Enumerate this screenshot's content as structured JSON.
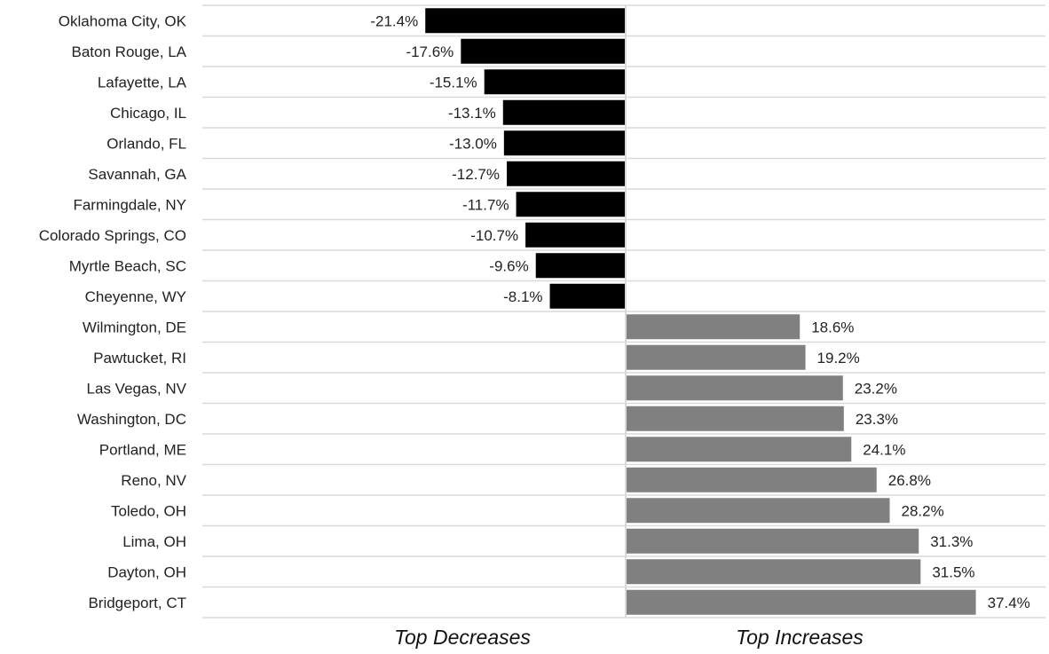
{
  "chart_data": {
    "type": "bar",
    "orientation": "horizontal",
    "categories": [
      "Oklahoma City, OK",
      "Baton Rouge, LA",
      "Lafayette, LA",
      "Chicago, IL",
      "Orlando, FL",
      "Savannah, GA",
      "Farmingdale, NY",
      "Colorado Springs, CO",
      "Myrtle Beach, SC",
      "Cheyenne, WY",
      "Wilmington, DE",
      "Pawtucket, RI",
      "Las Vegas, NV",
      "Washington, DC",
      "Portland, ME",
      "Reno, NV",
      "Toledo, OH",
      "Lima, OH",
      "Dayton, OH",
      "Bridgeport, CT"
    ],
    "values": [
      -21.4,
      -17.6,
      -15.1,
      -13.1,
      -13.0,
      -12.7,
      -11.7,
      -10.7,
      -9.6,
      -8.1,
      18.6,
      19.2,
      23.2,
      23.3,
      24.1,
      26.8,
      28.2,
      31.3,
      31.5,
      37.4
    ],
    "value_labels": [
      "-21.4%",
      "-17.6%",
      "-15.1%",
      "-13.1%",
      "-13.0%",
      "-12.7%",
      "-11.7%",
      "-10.7%",
      "-9.6%",
      "-8.1%",
      "18.6%",
      "19.2%",
      "23.2%",
      "23.3%",
      "24.1%",
      "26.8%",
      "28.2%",
      "31.3%",
      "31.5%",
      "37.4%"
    ],
    "section_labels": {
      "negative": "Top Decreases",
      "positive": "Top Increases"
    },
    "colors": {
      "negative": "#000000",
      "positive": "#808080",
      "gridline": "#d9d9d9",
      "text": "#222222"
    },
    "xlim": [
      -33,
      40
    ],
    "grid": true,
    "legend": "none"
  }
}
